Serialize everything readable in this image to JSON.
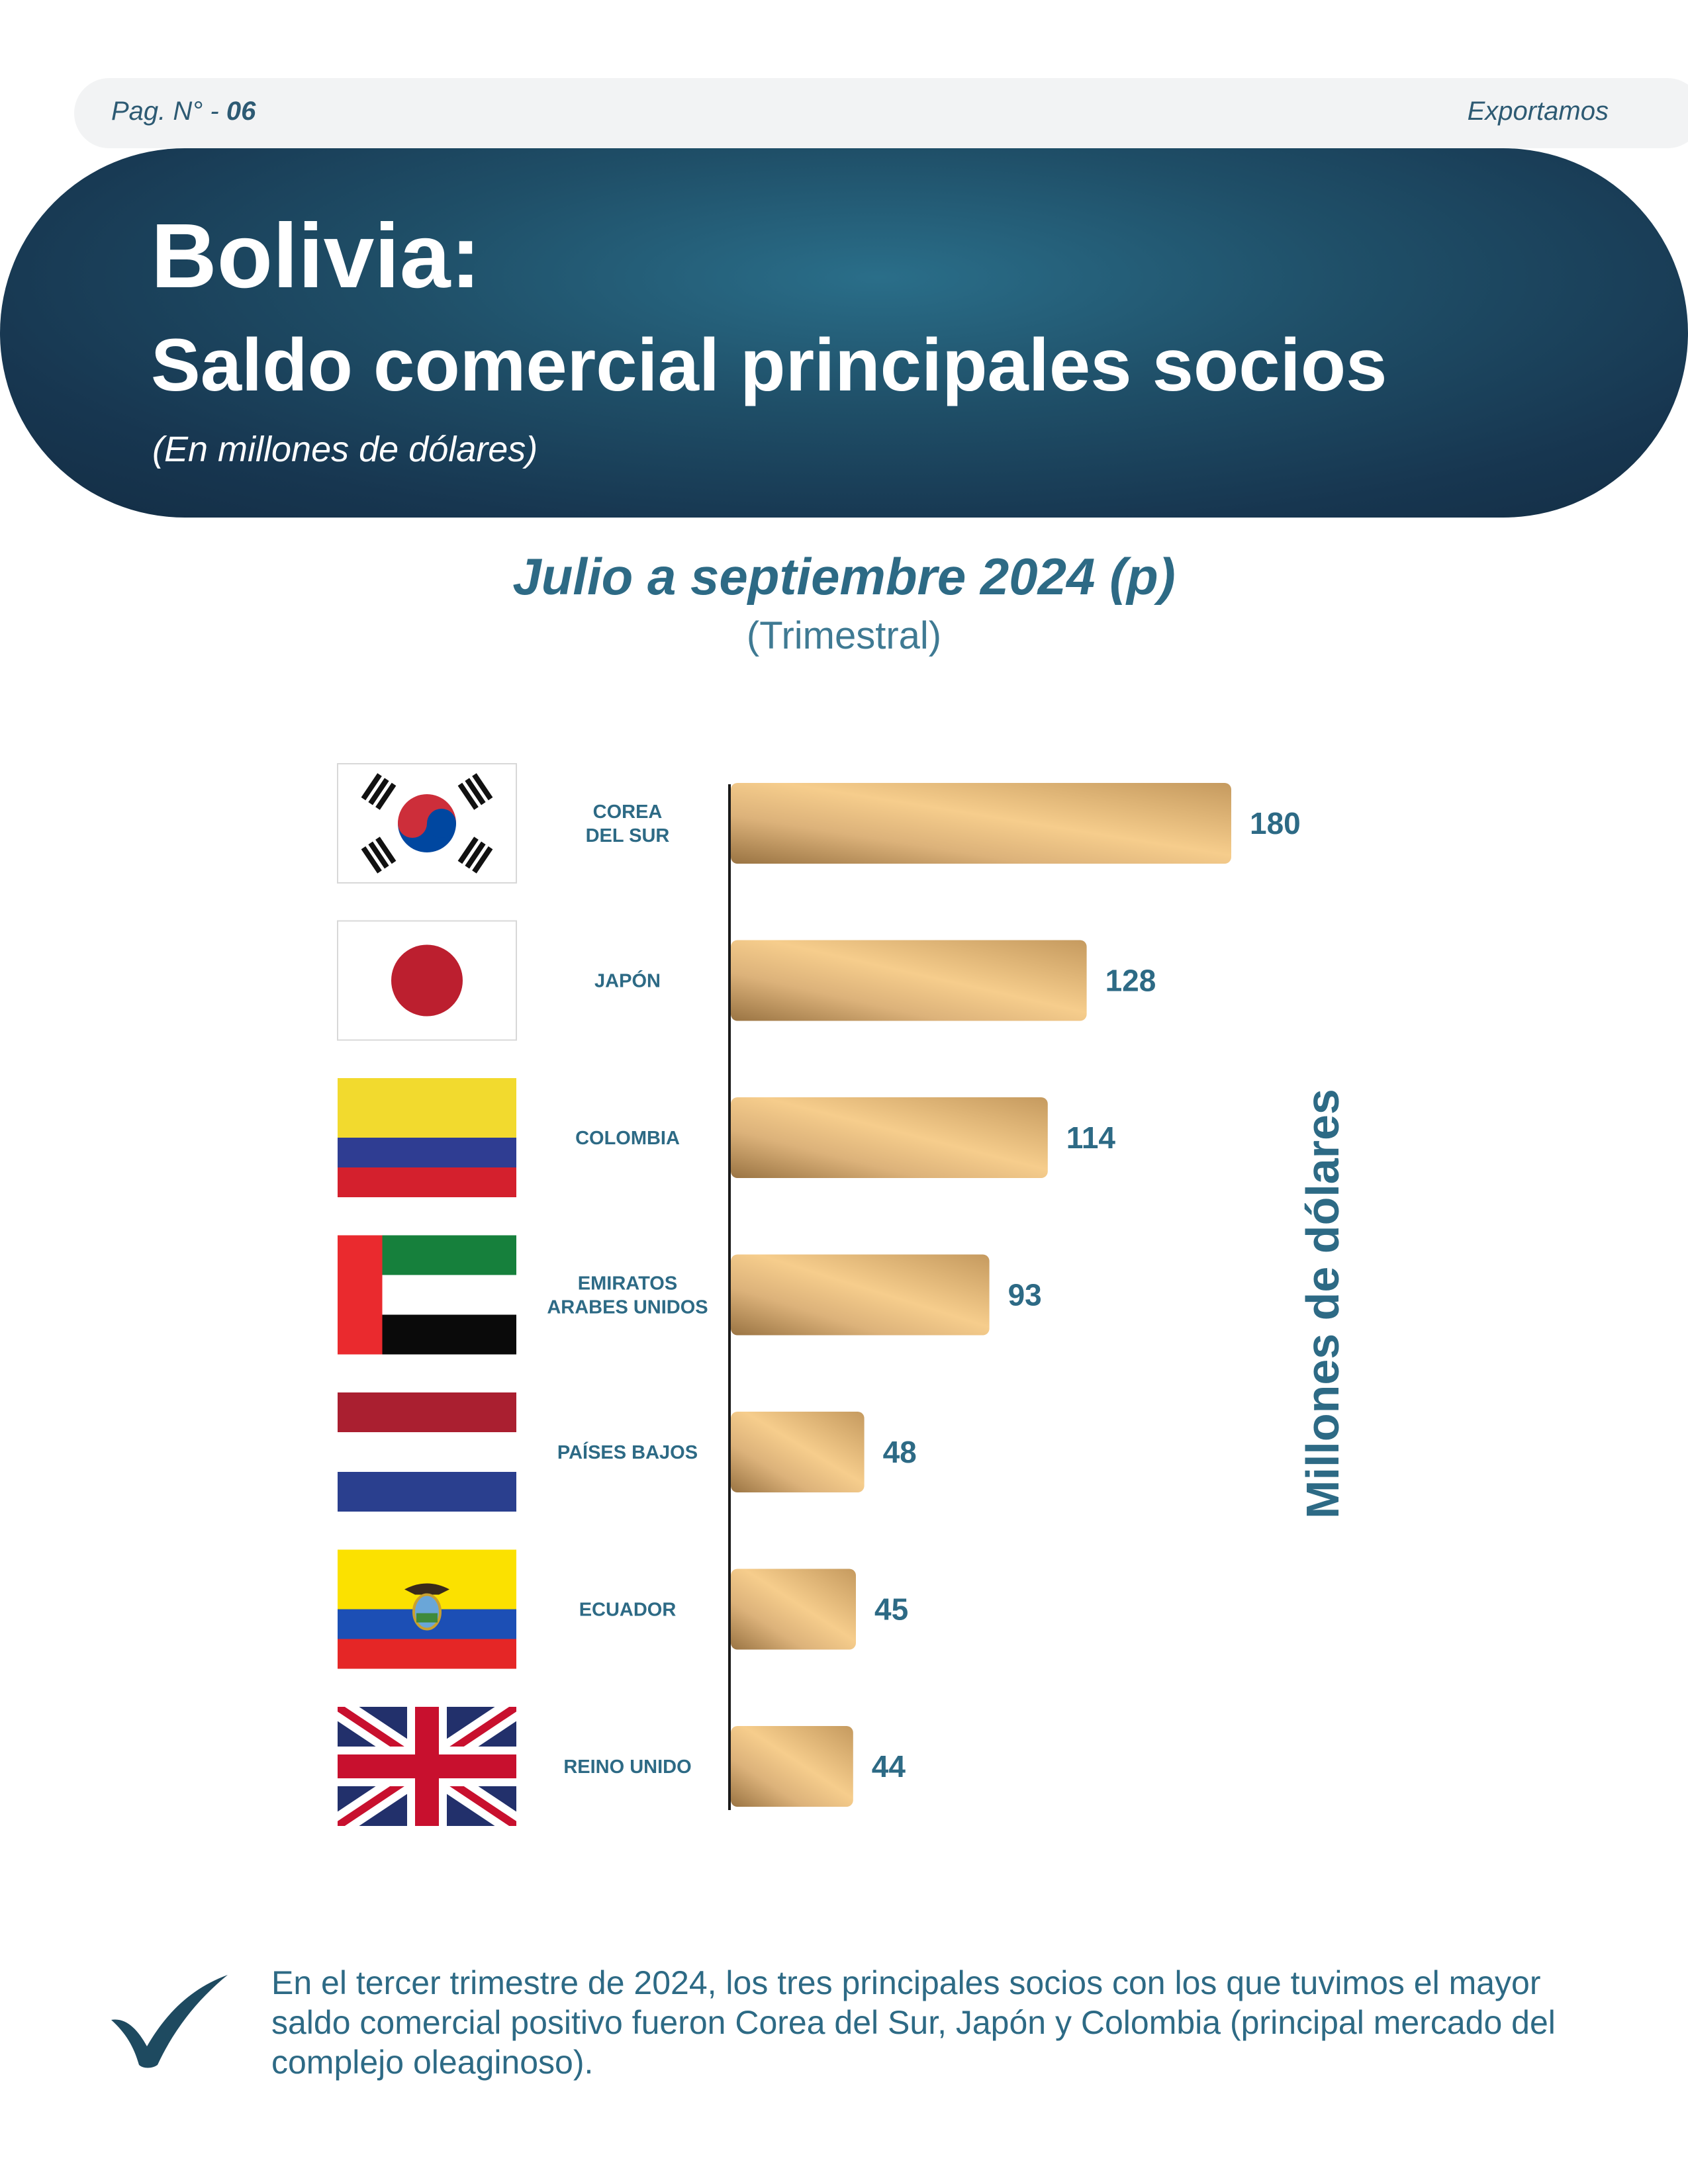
{
  "header": {
    "page_label": "Pag. N° - ",
    "page_number": "06",
    "brand": "Exportamos"
  },
  "banner": {
    "title": "Bolivia:",
    "subtitle": "Saldo comercial principales socios",
    "unit_note": "(En millones de dólares)"
  },
  "period": {
    "title": "Julio a septiembre 2024 (p)",
    "frequency": "(Trimestral)"
  },
  "chart_data": {
    "type": "bar",
    "orientation": "horizontal",
    "ylabel": "Millones de dólares",
    "categories": [
      "COREA\nDEL SUR",
      "JAPÓN",
      "COLOMBIA",
      "EMIRATOS\nARABES UNIDOS",
      "PAÍSES BAJOS",
      "ECUADOR",
      "REINO UNIDO"
    ],
    "values": [
      180,
      128,
      114,
      93,
      48,
      45,
      44
    ],
    "flags": [
      "south-korea-flag",
      "japan-flag",
      "colombia-flag",
      "uae-flag",
      "netherlands-flag",
      "ecuador-flag",
      "uk-flag"
    ],
    "bar_color": "#d4a96a",
    "grid": false
  },
  "note": {
    "icon": "checkmark-icon",
    "text": "En el tercer trimestre de 2024, los tres principales socios con los que tuvimos el mayor saldo comercial positivo fueron Corea del Sur, Japón y Colombia (principal mercado del complejo oleaginoso)."
  }
}
